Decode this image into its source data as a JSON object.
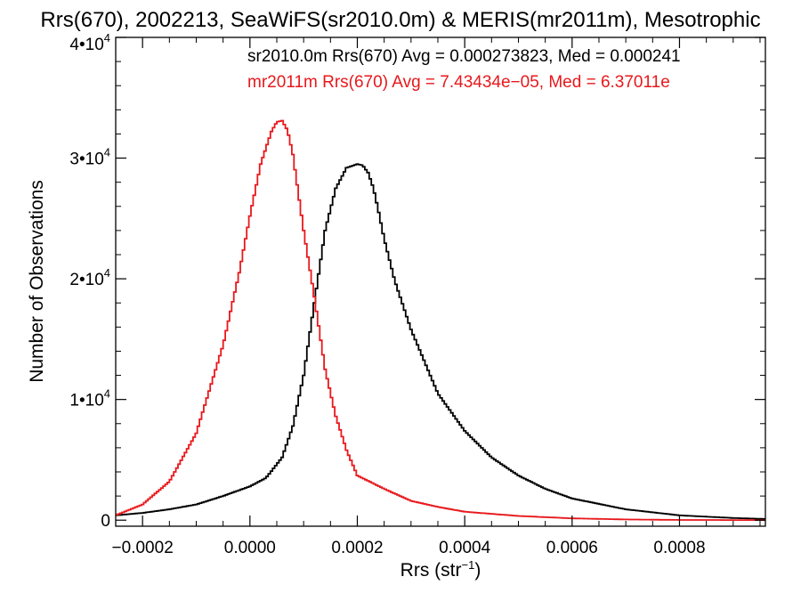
{
  "chart_data": {
    "type": "line",
    "title": "Rrs(670), 2002213, SeaWiFS(sr2010.0m) & MERIS(mr2011m), Mesotrophic",
    "xlabel": "Rrs (str",
    "xlabel_sup": "−1",
    "xlabel_close": ")",
    "ylabel": "Number of Observations",
    "xlim": [
      -0.00025,
      0.00096
    ],
    "ylim": [
      -500,
      40000
    ],
    "x_ticks": [
      {
        "value": -0.0002,
        "label": "−0.0002"
      },
      {
        "value": 0.0,
        "label": "0.0000"
      },
      {
        "value": 0.0002,
        "label": "0.0002"
      },
      {
        "value": 0.0004,
        "label": "0.0004"
      },
      {
        "value": 0.0006,
        "label": "0.0006"
      },
      {
        "value": 0.0008,
        "label": "0.0008"
      }
    ],
    "y_ticks": [
      {
        "value": 0,
        "label": "0"
      },
      {
        "value": 10000,
        "label": "1•10",
        "exp": "4"
      },
      {
        "value": 20000,
        "label": "2•10",
        "exp": "4"
      },
      {
        "value": 30000,
        "label": "3•10",
        "exp": "4"
      },
      {
        "value": 40000,
        "label": "4•10",
        "exp": "4"
      }
    ],
    "series": [
      {
        "name": "sr2010.0m",
        "color": "#000000",
        "legend": "sr2010.0m Rrs(670) Avg = 0.000273823, Med = 0.000241",
        "x": [
          -0.00025,
          -0.0002,
          -0.00015,
          -0.0001,
          -5e-05,
          0.0,
          3e-05,
          6e-05,
          8e-05,
          0.0001,
          0.00012,
          0.00014,
          0.00016,
          0.00018,
          0.0002,
          0.00021,
          0.00022,
          0.00023,
          0.00024,
          0.00025,
          0.00027,
          0.0003,
          0.00035,
          0.0004,
          0.00045,
          0.0005,
          0.00055,
          0.0006,
          0.0007,
          0.0008,
          0.0009,
          0.00096
        ],
        "y": [
          400,
          600,
          900,
          1300,
          2000,
          2800,
          3500,
          5200,
          7800,
          12000,
          18000,
          24000,
          27500,
          29200,
          29500,
          29400,
          28800,
          27500,
          25500,
          23300,
          19800,
          15800,
          10500,
          7400,
          5200,
          3700,
          2600,
          1800,
          900,
          400,
          180,
          100
        ]
      },
      {
        "name": "mr2011m",
        "color": "#e8181c",
        "legend": "mr2011m Rrs(670) Avg = 7.43434e−05, Med = 6.37011e",
        "x": [
          -0.00025,
          -0.0002,
          -0.00015,
          -0.0001,
          -5e-05,
          -2e-05,
          0.0,
          2e-05,
          4e-05,
          5e-05,
          6e-05,
          7e-05,
          8e-05,
          0.0001,
          0.00012,
          0.00014,
          0.00016,
          0.00018,
          0.0002,
          0.00025,
          0.0003,
          0.00035,
          0.0004,
          0.0005,
          0.0006,
          0.0007,
          0.0008,
          0.00096
        ],
        "y": [
          400,
          1300,
          3200,
          7200,
          14500,
          20500,
          25200,
          29500,
          32200,
          33000,
          33100,
          32300,
          30300,
          24000,
          18500,
          12500,
          8600,
          5800,
          3700,
          2600,
          1600,
          1100,
          700,
          350,
          150,
          60,
          20,
          5
        ]
      }
    ],
    "grid": false,
    "legend_placement": "top"
  }
}
